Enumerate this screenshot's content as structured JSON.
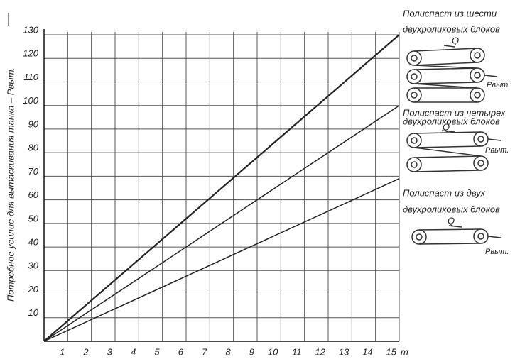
{
  "chart_data": {
    "type": "line",
    "y_label": "Потребное усилие для вытаскивания танка – Pвыт.",
    "x_unit": "т",
    "x": [
      0,
      15
    ],
    "series": [
      {
        "color": "#222",
        "values": [
          0,
          130
        ]
      },
      {
        "color": "#222",
        "values": [
          0,
          100
        ]
      },
      {
        "color": "#222",
        "values": [
          0,
          69
        ]
      }
    ],
    "xlim": [
      0,
      15
    ],
    "ylim": [
      0,
      130
    ],
    "xticks": [
      1,
      2,
      3,
      4,
      5,
      6,
      7,
      8,
      9,
      10,
      11,
      12,
      13,
      14,
      15
    ],
    "yticks": [
      10,
      20,
      30,
      40,
      50,
      60,
      70,
      80,
      90,
      100,
      110,
      120,
      130
    ],
    "grid": true,
    "annotations": [
      {
        "title": [
          "Полиспаст из шести",
          "двухроликовых блоков"
        ],
        "q": "Q",
        "p": "Рвыт."
      },
      {
        "title": [
          "Полиспаст из четырех",
          "двухроликовых блоков"
        ],
        "q": "Q",
        "p": "Рвыт."
      },
      {
        "title": [
          "Полиспаст из двух",
          "двухроликовых блоков"
        ],
        "q": "Q",
        "p": "Рвыт."
      }
    ]
  }
}
